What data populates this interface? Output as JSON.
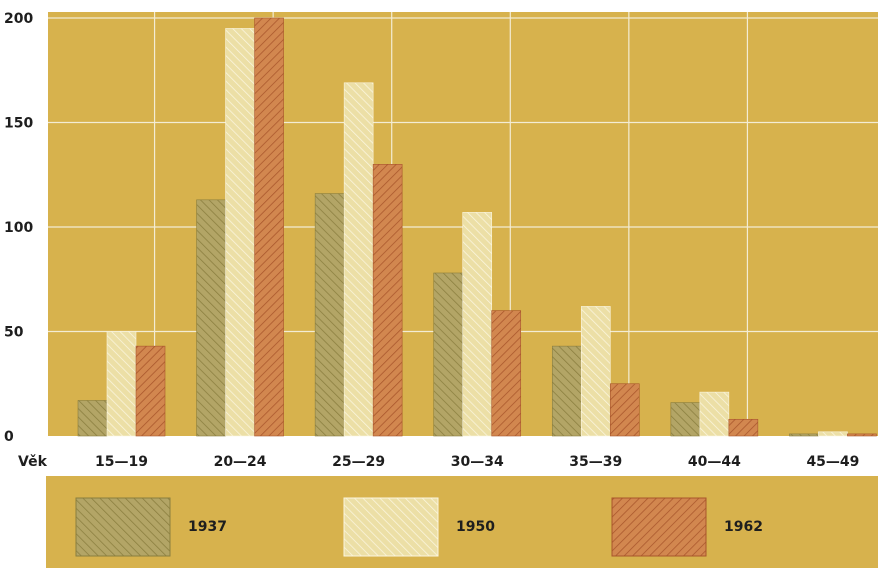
{
  "chart_data": {
    "type": "bar",
    "xlabel": "Věk",
    "categories": [
      "15—19",
      "20—24",
      "25—29",
      "30—34",
      "35—39",
      "40—44",
      "45—49"
    ],
    "series": [
      {
        "name": "1937",
        "values": [
          17,
          113,
          116,
          78,
          43,
          16,
          1
        ]
      },
      {
        "name": "1950",
        "values": [
          50,
          195,
          169,
          107,
          62,
          21,
          2
        ]
      },
      {
        "name": "1962",
        "values": [
          43,
          200,
          130,
          60,
          25,
          8,
          1
        ]
      }
    ],
    "ylim": [
      0,
      200
    ],
    "yticks": [
      0,
      50,
      100,
      150,
      200
    ],
    "grid": true,
    "legend_position": "bottom",
    "colors": {
      "background": "#d7b24d",
      "grid": "#f3ecd4",
      "series": [
        "#b3a566",
        "#ecdfa6",
        "#d2874f"
      ],
      "hatch": [
        "#8a7e3e",
        "#fbf6e0",
        "#a8552b"
      ]
    }
  }
}
